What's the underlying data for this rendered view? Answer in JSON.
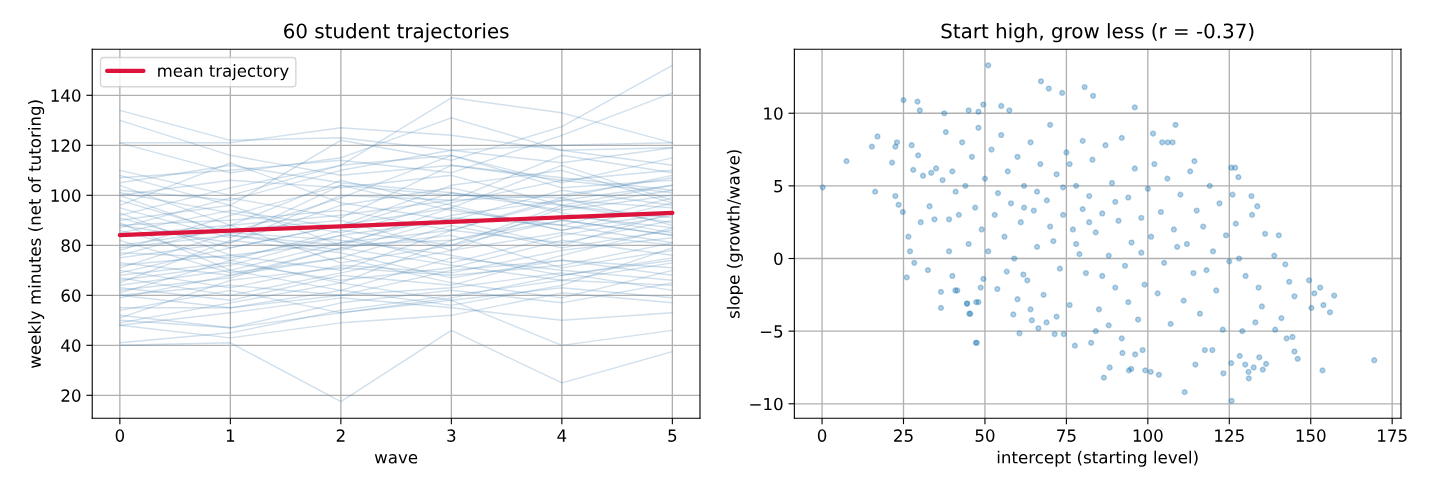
{
  "chart_data": [
    {
      "type": "line",
      "title": "60 student trajectories",
      "xlabel": "wave",
      "ylabel": "weekly minutes (net of tutoring)",
      "x": [
        0,
        1,
        2,
        3,
        4,
        5
      ],
      "xlim": [
        -0.25,
        5.25
      ],
      "xticks": [
        0,
        1,
        2,
        3,
        4,
        5
      ],
      "ylim": [
        10.8,
        158.4
      ],
      "yticks": [
        20,
        40,
        60,
        80,
        100,
        120,
        140
      ],
      "grid": true,
      "legend": "top left",
      "series": [
        {
          "color": "#4682b4",
          "values": [
            134,
            122,
            123,
            118,
            120,
            121
          ]
        },
        {
          "color": "#4682b4",
          "values": [
            130,
            116,
            108,
            112,
            106,
            110
          ]
        },
        {
          "color": "#4682b4",
          "values": [
            121,
            121,
            127,
            124,
            118,
            119
          ]
        },
        {
          "color": "#4682b4",
          "values": [
            121,
            109,
            115,
            131,
            118,
            112
          ]
        },
        {
          "color": "#4682b4",
          "values": [
            110,
            100,
            112,
            139,
            133,
            121
          ]
        },
        {
          "color": "#4682b4",
          "values": [
            108,
            96,
            122,
            114,
            127.5,
            152
          ]
        },
        {
          "color": "#4682b4",
          "values": [
            107,
            110,
            114,
            109,
            124,
            141
          ]
        },
        {
          "color": "#4682b4",
          "values": [
            105,
            112,
            105,
            101,
            96,
            104
          ]
        },
        {
          "color": "#4682b4",
          "values": [
            104,
            88,
            92,
            98,
            100,
            107
          ]
        },
        {
          "color": "#4682b4",
          "values": [
            102,
            98,
            110,
            118,
            113,
            119
          ]
        },
        {
          "color": "#4682b4",
          "values": [
            101,
            93,
            85,
            97,
            106,
            101
          ]
        },
        {
          "color": "#4682b4",
          "values": [
            100,
            84,
            80,
            95,
            112,
            98
          ]
        },
        {
          "color": "#4682b4",
          "values": [
            100,
            106,
            103,
            108,
            96,
            91
          ]
        },
        {
          "color": "#4682b4",
          "values": [
            98,
            85,
            99,
            116,
            105,
            115
          ]
        },
        {
          "color": "#4682b4",
          "values": [
            96,
            113,
            97,
            90,
            102,
            96
          ]
        },
        {
          "color": "#4682b4",
          "values": [
            95,
            83,
            104,
            94,
            88,
            99
          ]
        },
        {
          "color": "#4682b4",
          "values": [
            93,
            76,
            81,
            86,
            98,
            104
          ]
        },
        {
          "color": "#4682b4",
          "values": [
            92,
            103,
            112,
            116,
            103,
            106
          ]
        },
        {
          "color": "#4682b4",
          "values": [
            91,
            79,
            88,
            104,
            110,
            97
          ]
        },
        {
          "color": "#4682b4",
          "values": [
            90,
            96,
            80,
            82,
            92,
            87
          ]
        },
        {
          "color": "#4682b4",
          "values": [
            89,
            70,
            81,
            92,
            98,
            95
          ]
        },
        {
          "color": "#4682b4",
          "values": [
            88,
            90,
            94,
            86,
            81,
            90
          ]
        },
        {
          "color": "#4682b4",
          "values": [
            88,
            81,
            100,
            98,
            116,
            109
          ]
        },
        {
          "color": "#4682b4",
          "values": [
            87,
            99,
            91,
            112,
            107,
            102
          ]
        },
        {
          "color": "#4682b4",
          "values": [
            86,
            74,
            86,
            80,
            90,
            84
          ]
        },
        {
          "color": "#4682b4",
          "values": [
            85,
            94,
            87,
            101,
            94,
            100
          ]
        },
        {
          "color": "#4682b4",
          "values": [
            84,
            88,
            106,
            96,
            86,
            93
          ]
        },
        {
          "color": "#4682b4",
          "values": [
            82,
            69,
            75,
            88,
            79,
            86
          ]
        },
        {
          "color": "#4682b4",
          "values": [
            80,
            86,
            90,
            78,
            95,
            102
          ]
        },
        {
          "color": "#4682b4",
          "values": [
            79,
            84,
            78,
            91,
            88,
            81
          ]
        },
        {
          "color": "#4682b4",
          "values": [
            78,
            92,
            104,
            100,
            99,
            108
          ]
        },
        {
          "color": "#4682b4",
          "values": [
            77,
            75,
            84,
            73,
            84,
            92
          ]
        },
        {
          "color": "#4682b4",
          "values": [
            76,
            88,
            73,
            80,
            96,
            89
          ]
        },
        {
          "color": "#4682b4",
          "values": [
            75,
            81,
            96,
            103,
            93,
            85
          ]
        },
        {
          "color": "#4682b4",
          "values": [
            73,
            68,
            79,
            84,
            71,
            78
          ]
        },
        {
          "color": "#4682b4",
          "values": [
            72,
            76,
            70,
            86,
            99,
            88
          ]
        },
        {
          "color": "#4682b4",
          "values": [
            71,
            85,
            82,
            76,
            68,
            74
          ]
        },
        {
          "color": "#4682b4",
          "values": [
            70,
            63,
            72,
            69,
            78,
            83
          ]
        },
        {
          "color": "#4682b4",
          "values": [
            69,
            79,
            88,
            95,
            86,
            97
          ]
        },
        {
          "color": "#4682b4",
          "values": [
            68,
            73,
            66,
            71,
            82,
            76
          ]
        },
        {
          "color": "#4682b4",
          "values": [
            67,
            60,
            69,
            78,
            85,
            80
          ]
        },
        {
          "color": "#4682b4",
          "values": [
            66,
            72,
            84,
            90,
            80,
            93
          ]
        },
        {
          "color": "#4682b4",
          "values": [
            65,
            82,
            77,
            67,
            74,
            71
          ]
        },
        {
          "color": "#4682b4",
          "values": [
            64,
            70,
            62,
            75,
            70,
            66
          ]
        },
        {
          "color": "#4682b4",
          "values": [
            63,
            58,
            68,
            64,
            76,
            87
          ]
        },
        {
          "color": "#4682b4",
          "values": [
            62,
            67,
            79,
            72,
            66,
            73
          ]
        },
        {
          "color": "#4682b4",
          "values": [
            61,
            74,
            65,
            82,
            90,
            84
          ]
        },
        {
          "color": "#4682b4",
          "values": [
            60,
            64,
            60,
            70,
            74,
            68
          ]
        },
        {
          "color": "#4682b4",
          "values": [
            60,
            55,
            62,
            56,
            64,
            79
          ]
        },
        {
          "color": "#4682b4",
          "values": [
            59,
            68,
            75,
            65,
            59,
            70
          ]
        },
        {
          "color": "#4682b4",
          "values": [
            55,
            55,
            60,
            63,
            69,
            62
          ]
        },
        {
          "color": "#4682b4",
          "values": [
            54,
            62,
            53,
            59,
            68,
            75
          ]
        },
        {
          "color": "#4682b4",
          "values": [
            52,
            47,
            57,
            62,
            57,
            65
          ]
        },
        {
          "color": "#4682b4",
          "values": [
            51,
            66,
            71,
            68,
            72,
            81
          ]
        },
        {
          "color": "#4682b4",
          "values": [
            50,
            47,
            53,
            58,
            40,
            46
          ]
        },
        {
          "color": "#4682b4",
          "values": [
            49,
            57,
            65,
            58,
            63,
            59
          ]
        },
        {
          "color": "#4682b4",
          "values": [
            48,
            43,
            49,
            52,
            61,
            57
          ]
        },
        {
          "color": "#4682b4",
          "values": [
            48,
            53,
            59,
            55,
            50,
            53
          ]
        },
        {
          "color": "#4682b4",
          "values": [
            41,
            45,
            54,
            60,
            66,
            64
          ]
        },
        {
          "color": "#4682b4",
          "values": [
            40,
            41,
            17.5,
            46,
            25,
            37.5
          ]
        },
        {
          "name": "mean trajectory",
          "color": "#dc143c",
          "values": [
            84.1,
            85.9,
            87.6,
            89.4,
            91.2,
            93.0
          ]
        }
      ]
    },
    {
      "type": "scatter",
      "title": "Start high, grow less (r = -0.37)",
      "xlabel": "intercept (starting level)",
      "ylabel": "slope (growth/wave)",
      "xlim": [
        -8.5,
        177.7
      ],
      "xticks": [
        0,
        25,
        50,
        75,
        100,
        125,
        150,
        175
      ],
      "ylim": [
        -11.0,
        14.4
      ],
      "yticks": [
        {
          "value": -10,
          "label": "−10"
        },
        {
          "value": -5,
          "label": "−5"
        },
        0,
        5,
        10
      ],
      "grid": true,
      "series": [
        {
          "color": "#1f77b4",
          "x": [
            0.2,
            7.5,
            15.3,
            16.3,
            17,
            21.5,
            22.5,
            22.5,
            23,
            23.5,
            24.8,
            25,
            26,
            26.5,
            27,
            27.5,
            28,
            28.3,
            29.3,
            29.5,
            30,
            30.3,
            32.5,
            33.5,
            34.5,
            36.5,
            36.5,
            37.5,
            39,
            40,
            41.5,
            44.5,
            45.5,
            47.5,
            48,
            51,
            49.5,
            45,
            48,
            55,
            57.5,
            80.6,
            83.2,
            73.7,
            96,
            108.5,
            101.6,
            104.4,
            106.1,
            107.6,
            114.3,
            125.6,
            126.8,
            127.8,
            131.8,
            133.6,
            140.2,
            138.8,
            142.2,
            143.4,
            149.5,
            152.9,
            157.2,
            151.1,
            153.9,
            150.2,
            155.9,
            145,
            141,
            139.1,
            142.6,
            144.4,
            145,
            146,
            169.5,
            153.6,
            131,
            130.9,
            132.5,
            135.3,
            136.3,
            134.2,
            128.2,
            129.9,
            125.6,
            123.2,
            125.7,
            111.3,
            86.5,
            88.3,
            94.2,
            94.9,
            103.4,
            99.2,
            100.9,
            114.6,
            92.2,
            96.1,
            98.4,
            77.6,
            82.6,
            117.5,
            119.8,
            67.2,
            69.6,
            47.2,
            60.6,
            71.4,
            74.2,
            58.7,
            64.4,
            66.4,
            68.9,
            49.5,
            48.7,
            53.8,
            56.7,
            61.8,
            40.9,
            44.5,
            45.2,
            47.3,
            40,
            42,
            43,
            44,
            45,
            46,
            47,
            48,
            49,
            50,
            51,
            52,
            53,
            54,
            55,
            56,
            57,
            58,
            59,
            60,
            41,
            38,
            39,
            35,
            33,
            31,
            37,
            61,
            62,
            63,
            64,
            65,
            66,
            67,
            68,
            69,
            70,
            71,
            72,
            73,
            74,
            75,
            76,
            77,
            78,
            79,
            80,
            62,
            66,
            70,
            74,
            78,
            60,
            64,
            72,
            76,
            80,
            81,
            82,
            83,
            84,
            85,
            86,
            87,
            88,
            89,
            90,
            91,
            92,
            93,
            94,
            95,
            96,
            97,
            98,
            99,
            100,
            82,
            86,
            90,
            94,
            98,
            84,
            88,
            92,
            101,
            102,
            103,
            104,
            105,
            106,
            107,
            108,
            109,
            110,
            111,
            112,
            113,
            114,
            115,
            116,
            117,
            118,
            119,
            120,
            121,
            122,
            123,
            124,
            125,
            127,
            128,
            130,
            132,
            134,
            136,
            135,
            129,
            126,
            133
          ],
          "values": [
            4.9,
            6.7,
            7.7,
            4.6,
            8.4,
            6.6,
            7.7,
            4.3,
            8,
            3.7,
            3.2,
            10.9,
            -1.3,
            1.5,
            0.5,
            7.8,
            6.1,
            -0.3,
            10.8,
            7.1,
            10.2,
            2.5,
            -0.8,
            5.9,
            2.7,
            -2.3,
            -3.4,
            10,
            0.5,
            -1.2,
            -2.2,
            -3.1,
            -3.8,
            -5.8,
            -3,
            13.3,
            10.6,
            10.2,
            10.1,
            10.5,
            10.2,
            11.8,
            11.2,
            11.4,
            10.4,
            9.2,
            8.6,
            8,
            8,
            8,
            6.7,
            6.25,
            6.25,
            5.6,
            4.3,
            3.6,
            1.6,
            0.2,
            -0.4,
            -1.6,
            -1.5,
            -2,
            -2.55,
            -2.4,
            -3.2,
            -3.4,
            -3.7,
            -2.6,
            -4.1,
            -4.9,
            -5.5,
            -5.4,
            -6.4,
            -6.9,
            -7,
            -7.7,
            -8.25,
            -7.8,
            -7.5,
            -7.65,
            -7.25,
            -6.8,
            -6.7,
            -7.3,
            -7.2,
            -7.9,
            -9.8,
            -9.2,
            -8.2,
            -7.5,
            -7.7,
            -7.6,
            -8,
            -7.7,
            -7.8,
            -7.3,
            -6.5,
            -6.6,
            -6.3,
            -6,
            -5.8,
            -6.3,
            -6.3,
            12.2,
            11.7,
            -5.8,
            -5.15,
            -5.2,
            -5.2,
            -3.85,
            -4.25,
            -4.8,
            -4.4,
            -1.4,
            -2,
            -2.1,
            -0.9,
            -1.1,
            -2.2,
            -3.1,
            -3.8,
            -3,
            6,
            3,
            8,
            5,
            1,
            7,
            3.5,
            9,
            2,
            5.5,
            0.5,
            7.5,
            3,
            4.5,
            8.5,
            1.5,
            6,
            3.8,
            0,
            7,
            4.6,
            8.7,
            2.7,
            6.2,
            3.6,
            5.7,
            5.4,
            2.5,
            5,
            -1.5,
            8,
            3.3,
            0.8,
            6.5,
            -2.5,
            4,
            9.2,
            1.2,
            5.8,
            -0.7,
            3,
            7.3,
            -3.2,
            2,
            5,
            0.3,
            8.1,
            3.5,
            4.6,
            2.2,
            4.9,
            1,
            -2.8,
            -3.5,
            -4,
            6.5,
            3.4,
            -1,
            4.3,
            6.8,
            1.8,
            -3.5,
            3.1,
            7.8,
            0.2,
            5.2,
            -2,
            2.6,
            8.3,
            -0.5,
            4.2,
            1.1,
            6.2,
            -4.2,
            2.8,
            -1.8,
            4.8,
            2.5,
            -1.2,
            3.9,
            -3,
            0.4,
            -5,
            -4.6,
            -5.5,
            1.5,
            6.5,
            -2.4,
            3.2,
            -0.3,
            5.5,
            -4.5,
            2,
            0.8,
            4.4,
            -2.9,
            1,
            6,
            -1,
            3.3,
            -3.8,
            2.2,
            -0.8,
            5,
            0.5,
            -2.2,
            3.8,
            -4.9,
            1.6,
            -0.2,
            2.4,
            0,
            -1.2,
            3,
            -2,
            1.7,
            -3.3,
            -5,
            4.4,
            -4.4
          ]
        }
      ]
    }
  ]
}
